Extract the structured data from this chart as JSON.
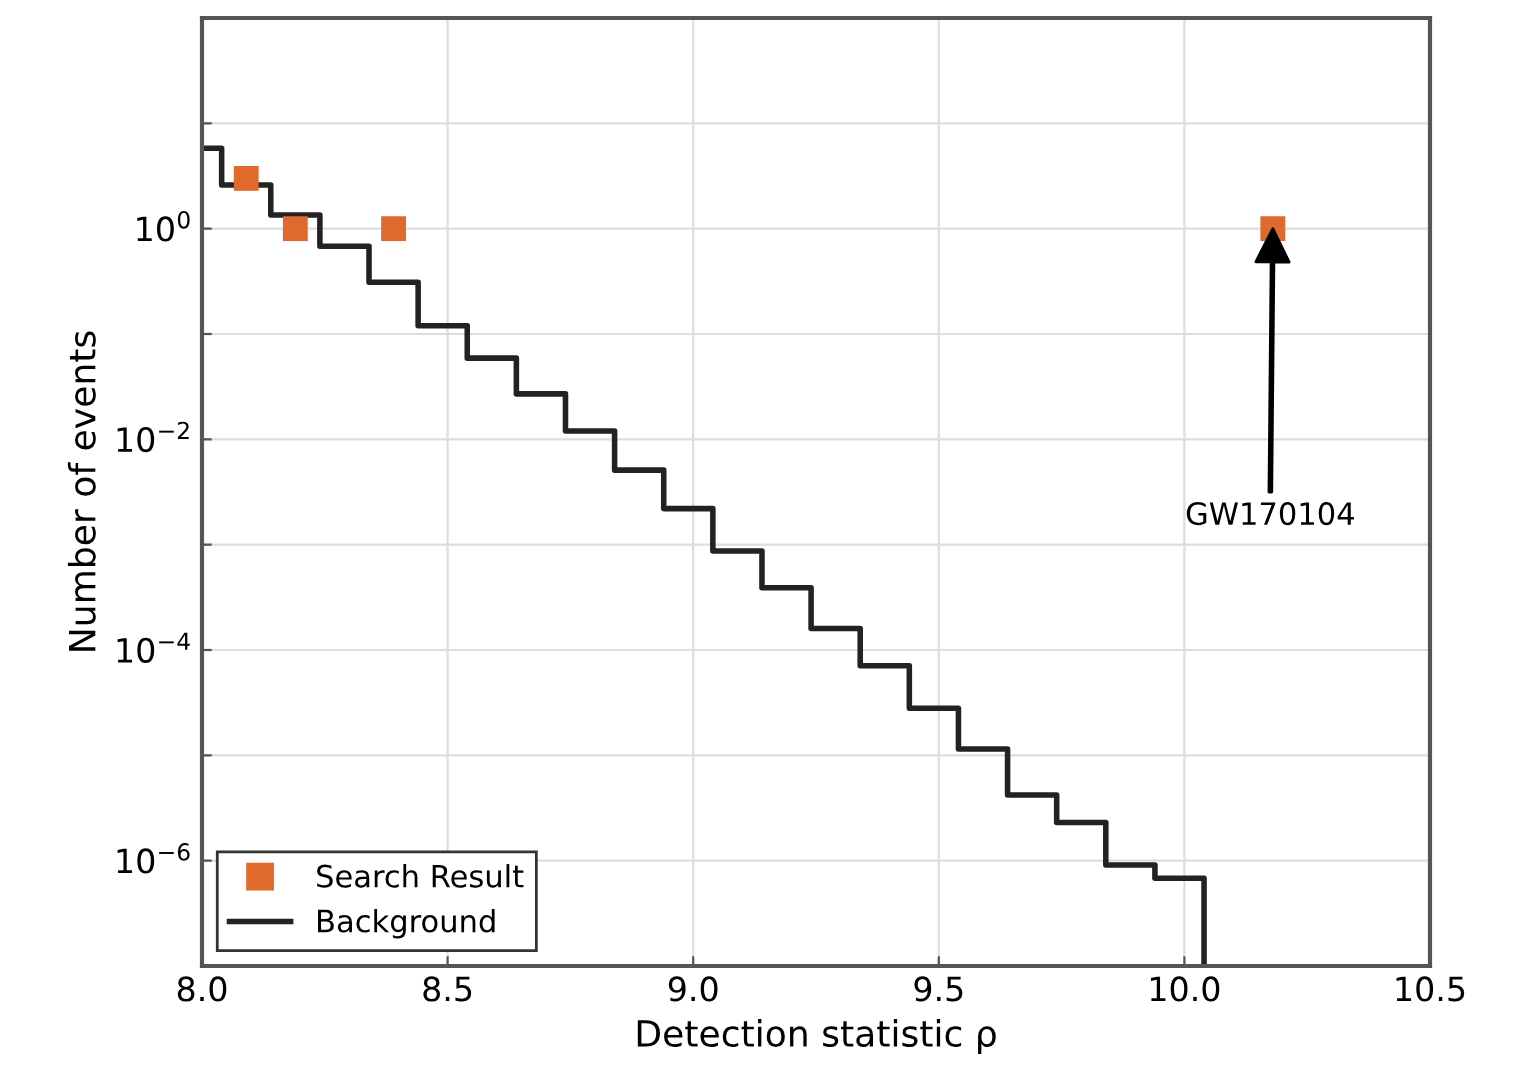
{
  "chart_data": {
    "type": "step",
    "xlabel": "Detection statistic ρ",
    "ylabel": "Number of events",
    "log": "y",
    "grid": true,
    "legend": "bottom left",
    "xlim": [
      8.0,
      10.5
    ],
    "xticks": [
      {
        "value": 8.0,
        "label": "8.0"
      },
      {
        "value": 8.5,
        "label": "8.5"
      },
      {
        "value": 9.0,
        "label": "9.0"
      },
      {
        "value": 9.5,
        "label": "9.5"
      },
      {
        "value": 10.0,
        "label": "10.0"
      },
      {
        "value": 10.5,
        "label": "10.5"
      }
    ],
    "ylim": [
      1e-07,
      100
    ],
    "yticks": [
      {
        "value": 1e-07,
        "label": null
      },
      {
        "value": 1e-06,
        "label": "10$^{−6}$"
      },
      {
        "value": 1e-05,
        "label": null
      },
      {
        "value": 0.0001,
        "label": "10$^{−4}$"
      },
      {
        "value": 0.001,
        "label": null
      },
      {
        "value": 0.01,
        "label": "10$^{−2}$"
      },
      {
        "value": 0.1,
        "label": null
      },
      {
        "value": 1,
        "label": "10$^{0}$"
      },
      {
        "value": 10,
        "label": null
      },
      {
        "value": 100,
        "label": null
      }
    ],
    "series": [
      {
        "name": "Search Result",
        "type": "scatter",
        "marker": "square",
        "color": "#e06a2c",
        "x": [
          8.09,
          8.19,
          8.39,
          10.18
        ],
        "values": [
          3,
          1,
          1,
          1
        ]
      },
      {
        "name": "Background",
        "marker": "none",
        "line_style": "solid",
        "color": "#222222",
        "x": [
          8.0,
          8.04,
          8.14,
          8.24,
          8.34,
          8.44,
          8.54,
          8.64,
          8.74,
          8.84,
          8.94,
          9.04,
          9.14,
          9.24,
          9.34,
          9.44,
          9.54,
          9.64,
          9.74,
          9.84,
          9.94,
          10.04
        ],
        "values": [
          5.8,
          2.6,
          1.35,
          0.68,
          0.31,
          0.12,
          0.059,
          0.027,
          0.012,
          0.0051,
          0.0022,
          0.00087,
          0.00039,
          0.00016,
          7.1e-05,
          2.8e-05,
          1.15e-05,
          4.2e-06,
          2.3e-06,
          9.1e-07,
          6.8e-07,
          1e-07
        ]
      }
    ],
    "annotations": [
      "GW170104"
    ]
  }
}
